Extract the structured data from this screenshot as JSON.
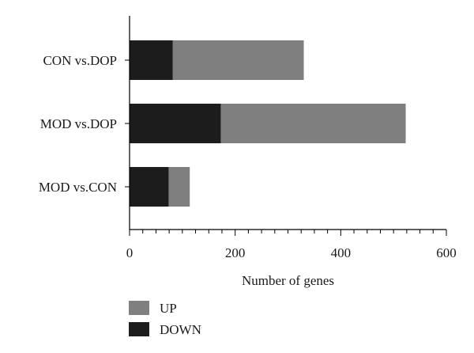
{
  "chart_data": {
    "type": "bar",
    "orientation": "horizontal",
    "stacked": true,
    "categories": [
      "CON vs.DOP",
      "MOD vs.DOP",
      "MOD vs.CON"
    ],
    "series": [
      {
        "name": "DOWN",
        "color": "#1c1c1c",
        "values": [
          82,
          173,
          74
        ]
      },
      {
        "name": "UP",
        "color": "#7f7f7f",
        "values": [
          248,
          350,
          40
        ]
      }
    ],
    "xlabel": "Number of genes",
    "ylabel": "",
    "xlim": [
      0,
      600
    ],
    "x_major_ticks": [
      0,
      200,
      400,
      600
    ],
    "x_minor_step": 25,
    "grid": false,
    "legend": {
      "placement": "bottom-left",
      "entries": [
        {
          "label": "UP",
          "color": "#7f7f7f"
        },
        {
          "label": "DOWN",
          "color": "#1c1c1c"
        }
      ]
    }
  }
}
